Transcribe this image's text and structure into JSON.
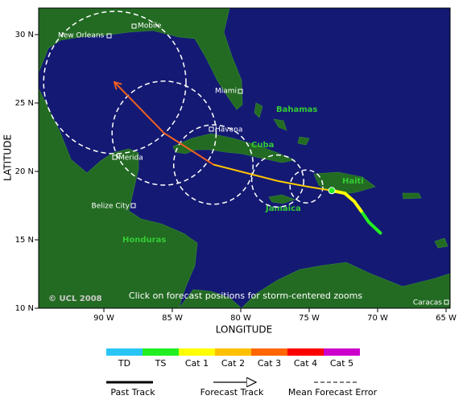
{
  "map": {
    "axes": {
      "x_label": "LONGITUDE",
      "y_label": "LATITUDE",
      "xticks": [
        {
          "value": -90,
          "label": "90 W"
        },
        {
          "value": -85,
          "label": "85 W"
        },
        {
          "value": -80,
          "label": "80 W"
        },
        {
          "value": -75,
          "label": "75 W"
        },
        {
          "value": -70,
          "label": "70 W"
        },
        {
          "value": -65,
          "label": "65 W"
        }
      ],
      "yticks": [
        {
          "value": 10,
          "label": "10 N"
        },
        {
          "value": 15,
          "label": "15 N"
        },
        {
          "value": 20,
          "label": "20 N"
        },
        {
          "value": 25,
          "label": "25 N"
        },
        {
          "value": 30,
          "label": "30 N"
        }
      ]
    },
    "cities": [
      "New Orleans",
      "Mobile",
      "Miami",
      "Havana",
      "Merida",
      "Belize City",
      "Caracas"
    ],
    "regions": [
      "Bahamas",
      "Cuba",
      "Haiti",
      "Jamaica",
      "Honduras"
    ],
    "copyright": "© UCL 2008",
    "instruction": "Click on forecast positions for storm-centered zooms",
    "past_track": [
      {
        "lon": -69.8,
        "lat": 15.5,
        "color": "#29c5f6"
      },
      {
        "lon": -70.65,
        "lat": 16.3,
        "color": "#22ee22"
      },
      {
        "lon": -71.2,
        "lat": 17.1,
        "color": "#22ee22"
      },
      {
        "lon": -71.7,
        "lat": 17.8,
        "color": "#ffff00"
      },
      {
        "lon": -72.4,
        "lat": 18.4,
        "color": "#ffff00"
      },
      {
        "lon": -73.35,
        "lat": 18.6,
        "color": "#ffff00"
      }
    ],
    "forecast": [
      {
        "lon": -75.2,
        "lat": 18.9,
        "error_radius": 1.2,
        "color": "#ffd000"
      },
      {
        "lon": -77.3,
        "lat": 19.3,
        "error_radius": 1.9,
        "color": "#ffd000"
      },
      {
        "lon": -82,
        "lat": 20.5,
        "error_radius": 2.9,
        "color": "#ffc000"
      },
      {
        "lon": -85.6,
        "lat": 22.8,
        "error_radius": 3.8,
        "color": "#f06020"
      },
      {
        "lon": -89.2,
        "lat": 26.5,
        "error_radius": 5.2,
        "color": "#f06020"
      }
    ],
    "legend": {
      "categories": [
        {
          "label": "TD",
          "color": "#29c5f6"
        },
        {
          "label": "TS",
          "color": "#22ee22"
        },
        {
          "label": "Cat 1",
          "color": "#ffff00"
        },
        {
          "label": "Cat 2",
          "color": "#ffc000"
        },
        {
          "label": "Cat 3",
          "color": "#ff6600"
        },
        {
          "label": "Cat 4",
          "color": "#ff0000"
        },
        {
          "label": "Cat 5",
          "color": "#cc00cc"
        }
      ],
      "past_track": "Past Track",
      "forecast_track": "Forecast Track",
      "error": "Mean Forecast Error"
    }
  }
}
